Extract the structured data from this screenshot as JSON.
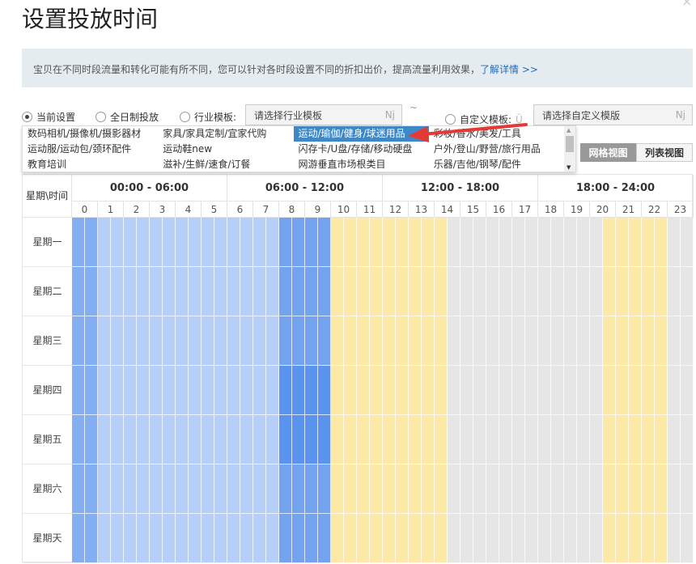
{
  "title": "设置投放时间",
  "info": {
    "text": "宝贝在不同时段流量和转化可能有所不同，您可以针对各时段设置不同的折扣出价，提高流量利用效果，",
    "link": "了解详情 >>"
  },
  "options": {
    "current": "当前设置",
    "allday": "全日制投放",
    "industry": "行业模板:",
    "industry_placeholder": "请选择行业模板",
    "tilde": "~",
    "custom": "自定义模板:",
    "custom_placeholder": "请选择自定义模版",
    "nj": "Nj",
    "selected_radio": "current"
  },
  "dropdown": {
    "items": [
      "数码相机/摄像机/摄影器材",
      "家具/家具定制/宜家代购",
      "运动/瑜伽/健身/球迷用品",
      "彩妆/香水/美发/工具",
      "运动服/运动包/颈环配件",
      "运动鞋new",
      "闪存卡/U盘/存储/移动硬盘",
      "户外/登山/野营/旅行用品",
      "教育培训",
      "滋补/生鲜/速食/订餐",
      "网游垂直市场根类目",
      "乐器/吉他/钢琴/配件"
    ],
    "highlighted": 2
  },
  "views": {
    "grid": "网格视图",
    "list": "列表视图",
    "active": "grid"
  },
  "schedule": {
    "corner": "星期\\时间",
    "groups": [
      "00:00 - 06:00",
      "06:00 - 12:00",
      "12:00 - 18:00",
      "18:00 - 24:00"
    ],
    "hours": [
      "0",
      "1",
      "2",
      "3",
      "4",
      "5",
      "6",
      "7",
      "8",
      "9",
      "10",
      "11",
      "12",
      "13",
      "14",
      "15",
      "16",
      "17",
      "18",
      "19",
      "20",
      "21",
      "22",
      "23"
    ],
    "days": [
      "星期一",
      "星期二",
      "星期三",
      "星期四",
      "星期五",
      "星期六",
      "星期天"
    ],
    "level_colors": {
      "a": "#84aef2",
      "l": "#b5cff8",
      "m": "#74a4f0",
      "d": "#5a94ee",
      "y": "#fde9a6",
      "g": "#e6e6e6"
    },
    "slots": [
      "aallllllllllllllmmmmyyyyyyyyyggggggggggggyyyyygg",
      "aallllllllllllllmmmmyyyyyyyyyggggggggggggyyyyygg",
      "aallllllllllllllmmmmyyyyyyyyyggggggggggggyyyyygg",
      "aallllllllllllllddddyyyyyyyyyggggggggggggyyyyygg",
      "aallllllllllllllddddyyyyyyyyyggggggggggggyyyyygg",
      "aallllllllllllllmmmmyyyyyyyyyggggggggggggyyyyygg",
      "aallllllllllllllmmmmyyyyyyyyyggggggggggggyyyyygg"
    ]
  },
  "annotation_color": "#e53935"
}
